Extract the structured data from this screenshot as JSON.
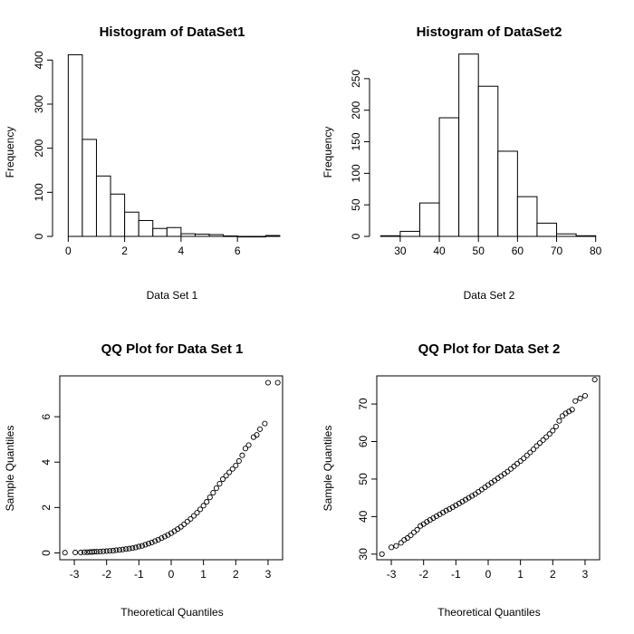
{
  "figure": {
    "background": "#ffffff",
    "ink": "#000000"
  },
  "chart_data": [
    {
      "type": "bar",
      "subtype": "histogram",
      "title": "Histogram of DataSet1",
      "xlabel": "Data Set 1",
      "ylabel": "Frequency",
      "xlim": [
        -0.3,
        7.6
      ],
      "ylim": [
        0,
        415
      ],
      "xticks": [
        0,
        2,
        4,
        6
      ],
      "yticks": [
        0,
        100,
        200,
        300,
        400
      ],
      "bin_edges": [
        0,
        0.5,
        1,
        1.5,
        2,
        2.5,
        3,
        3.5,
        4,
        4.5,
        5,
        5.5,
        6,
        6.5,
        7,
        7.5
      ],
      "values": [
        412,
        220,
        137,
        96,
        55,
        36,
        18,
        20,
        6,
        5,
        4,
        1,
        0,
        0,
        2
      ]
    },
    {
      "type": "bar",
      "subtype": "histogram",
      "title": "Histogram of DataSet2",
      "xlabel": "Data Set 2",
      "ylabel": "Frequency",
      "xlim": [
        24,
        81
      ],
      "ylim": [
        0,
        290
      ],
      "xticks": [
        30,
        40,
        50,
        60,
        70,
        80
      ],
      "yticks": [
        0,
        50,
        100,
        150,
        200,
        250
      ],
      "bin_edges": [
        25,
        30,
        35,
        40,
        45,
        50,
        55,
        60,
        65,
        70,
        75,
        80
      ],
      "values": [
        1,
        8,
        53,
        188,
        289,
        238,
        135,
        63,
        21,
        4,
        1
      ]
    },
    {
      "type": "scatter",
      "subtype": "qq",
      "title": "QQ Plot for Data Set 1",
      "xlabel": "Theoretical Quantiles",
      "ylabel": "Sample Quantiles",
      "xlim": [
        -3.45,
        3.45
      ],
      "ylim": [
        -0.3,
        7.8
      ],
      "xticks": [
        -3,
        -2,
        -1,
        0,
        1,
        2,
        3
      ],
      "yticks": [
        0,
        2,
        4,
        6
      ],
      "points": [
        [
          -3.29,
          0.01
        ],
        [
          -2.97,
          0.02
        ],
        [
          -2.8,
          0.02
        ],
        [
          -2.69,
          0.03
        ],
        [
          -2.6,
          0.03
        ],
        [
          -2.52,
          0.04
        ],
        [
          -2.45,
          0.04
        ],
        [
          -2.38,
          0.05
        ],
        [
          -2.3,
          0.05
        ],
        [
          -2.2,
          0.06
        ],
        [
          -2.1,
          0.07
        ],
        [
          -2.0,
          0.08
        ],
        [
          -1.9,
          0.09
        ],
        [
          -1.8,
          0.1
        ],
        [
          -1.7,
          0.12
        ],
        [
          -1.6,
          0.13
        ],
        [
          -1.5,
          0.15
        ],
        [
          -1.4,
          0.17
        ],
        [
          -1.3,
          0.19
        ],
        [
          -1.2,
          0.21
        ],
        [
          -1.1,
          0.24
        ],
        [
          -1.0,
          0.28
        ],
        [
          -0.9,
          0.31
        ],
        [
          -0.8,
          0.36
        ],
        [
          -0.7,
          0.41
        ],
        [
          -0.6,
          0.46
        ],
        [
          -0.5,
          0.52
        ],
        [
          -0.4,
          0.58
        ],
        [
          -0.3,
          0.65
        ],
        [
          -0.2,
          0.72
        ],
        [
          -0.1,
          0.79
        ],
        [
          0.0,
          0.87
        ],
        [
          0.1,
          0.96
        ],
        [
          0.2,
          1.05
        ],
        [
          0.3,
          1.15
        ],
        [
          0.4,
          1.26
        ],
        [
          0.5,
          1.38
        ],
        [
          0.6,
          1.5
        ],
        [
          0.7,
          1.63
        ],
        [
          0.8,
          1.77
        ],
        [
          0.9,
          1.92
        ],
        [
          1.0,
          2.08
        ],
        [
          1.1,
          2.25
        ],
        [
          1.2,
          2.45
        ],
        [
          1.3,
          2.65
        ],
        [
          1.4,
          2.85
        ],
        [
          1.5,
          3.05
        ],
        [
          1.6,
          3.25
        ],
        [
          1.7,
          3.4
        ],
        [
          1.8,
          3.55
        ],
        [
          1.9,
          3.7
        ],
        [
          2.0,
          3.85
        ],
        [
          2.1,
          4.05
        ],
        [
          2.2,
          4.3
        ],
        [
          2.3,
          4.6
        ],
        [
          2.4,
          4.75
        ],
        [
          2.55,
          5.1
        ],
        [
          2.65,
          5.2
        ],
        [
          2.75,
          5.45
        ],
        [
          2.9,
          5.7
        ],
        [
          3.0,
          7.5
        ],
        [
          3.3,
          7.5
        ]
      ]
    },
    {
      "type": "scatter",
      "subtype": "qq",
      "title": "QQ Plot for Data Set 2",
      "xlabel": "Theoretical Quantiles",
      "ylabel": "Sample Quantiles",
      "xlim": [
        -3.45,
        3.45
      ],
      "ylim": [
        28.5,
        77.5
      ],
      "xticks": [
        -3,
        -2,
        -1,
        0,
        1,
        2,
        3
      ],
      "yticks": [
        30,
        40,
        50,
        60,
        70
      ],
      "points": [
        [
          -3.29,
          30.0
        ],
        [
          -3.0,
          31.8
        ],
        [
          -2.85,
          32.2
        ],
        [
          -2.7,
          33.0
        ],
        [
          -2.6,
          33.8
        ],
        [
          -2.5,
          34.3
        ],
        [
          -2.4,
          35.0
        ],
        [
          -2.3,
          35.8
        ],
        [
          -2.2,
          36.5
        ],
        [
          -2.1,
          37.5
        ],
        [
          -2.0,
          38.0
        ],
        [
          -1.9,
          38.6
        ],
        [
          -1.8,
          39.1
        ],
        [
          -1.7,
          39.6
        ],
        [
          -1.6,
          40.1
        ],
        [
          -1.5,
          40.6
        ],
        [
          -1.4,
          41.1
        ],
        [
          -1.3,
          41.6
        ],
        [
          -1.2,
          42.0
        ],
        [
          -1.1,
          42.5
        ],
        [
          -1.0,
          43.0
        ],
        [
          -0.9,
          43.5
        ],
        [
          -0.8,
          44.0
        ],
        [
          -0.7,
          44.5
        ],
        [
          -0.6,
          45.0
        ],
        [
          -0.5,
          45.5
        ],
        [
          -0.4,
          46.0
        ],
        [
          -0.3,
          46.6
        ],
        [
          -0.2,
          47.2
        ],
        [
          -0.1,
          47.8
        ],
        [
          0.0,
          48.4
        ],
        [
          0.1,
          49.0
        ],
        [
          0.2,
          49.6
        ],
        [
          0.3,
          50.2
        ],
        [
          0.4,
          50.8
        ],
        [
          0.5,
          51.4
        ],
        [
          0.6,
          52.0
        ],
        [
          0.7,
          52.7
        ],
        [
          0.8,
          53.4
        ],
        [
          0.9,
          54.1
        ],
        [
          1.0,
          54.8
        ],
        [
          1.1,
          55.5
        ],
        [
          1.2,
          56.3
        ],
        [
          1.3,
          57.1
        ],
        [
          1.4,
          57.9
        ],
        [
          1.5,
          58.8
        ],
        [
          1.6,
          59.6
        ],
        [
          1.7,
          60.4
        ],
        [
          1.8,
          61.2
        ],
        [
          1.9,
          62.0
        ],
        [
          2.0,
          62.9
        ],
        [
          2.1,
          64.0
        ],
        [
          2.2,
          65.5
        ],
        [
          2.3,
          66.8
        ],
        [
          2.4,
          67.5
        ],
        [
          2.5,
          68.0
        ],
        [
          2.6,
          68.5
        ],
        [
          2.7,
          70.8
        ],
        [
          2.85,
          71.5
        ],
        [
          3.0,
          72.2
        ],
        [
          3.3,
          76.5
        ]
      ]
    }
  ]
}
